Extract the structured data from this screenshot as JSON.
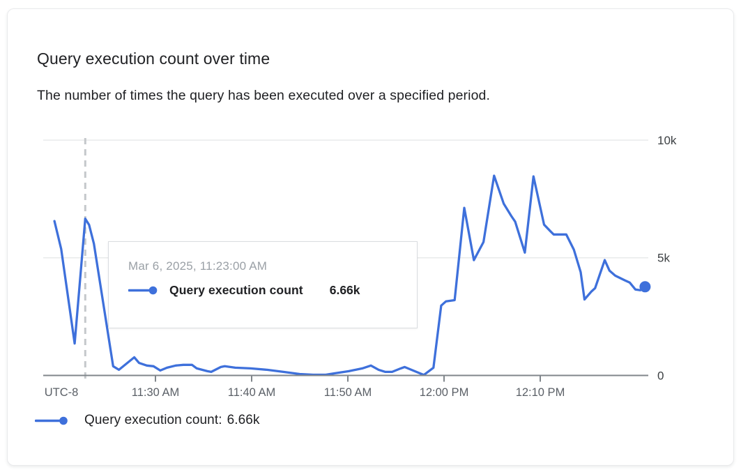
{
  "card": {
    "title": "Query execution count over time",
    "subtitle": "The number of times the query has been executed over a specified period."
  },
  "tooltip": {
    "timestamp": "Mar 6, 2025, 11:23:00 AM",
    "series_label": "Query execution count",
    "value": "6.66k"
  },
  "legend": {
    "label": "Query execution count:",
    "value": "6.66k"
  },
  "chart_data": {
    "type": "line",
    "title": "Query execution count over time",
    "series_name": "Query execution count",
    "x_axis": {
      "timezone_label": "UTC-8",
      "tick_labels": [
        "11:30 AM",
        "11:40 AM",
        "11:50 AM",
        "12:00 PM",
        "12:10 PM"
      ],
      "tick_minutes": [
        10,
        20,
        30,
        40,
        50
      ],
      "time_origin": "11:20 AM"
    },
    "y_axis": {
      "tick_labels": [
        "0",
        "5k",
        "10k"
      ],
      "min": 0,
      "max": 10000,
      "grid": true
    },
    "hover": {
      "time_label": "Mar 6, 2025, 11:23:00 AM",
      "t_min": 2.7,
      "value": 6660,
      "value_display": "6.66k"
    },
    "points": [
      [
        -0.5,
        6560
      ],
      [
        0.2,
        5370
      ],
      [
        1.6,
        1360
      ],
      [
        2.7,
        6660
      ],
      [
        3.1,
        6400
      ],
      [
        3.6,
        5600
      ],
      [
        5.6,
        390
      ],
      [
        6.2,
        240
      ],
      [
        7.8,
        770
      ],
      [
        8.3,
        530
      ],
      [
        9.1,
        420
      ],
      [
        9.8,
        390
      ],
      [
        10.5,
        210
      ],
      [
        11.2,
        330
      ],
      [
        12.1,
        420
      ],
      [
        12.9,
        450
      ],
      [
        13.8,
        450
      ],
      [
        14.3,
        300
      ],
      [
        15.4,
        180
      ],
      [
        15.8,
        150
      ],
      [
        16.8,
        360
      ],
      [
        17.2,
        390
      ],
      [
        18.3,
        330
      ],
      [
        19.9,
        300
      ],
      [
        21.6,
        240
      ],
      [
        23.3,
        150
      ],
      [
        25,
        60
      ],
      [
        26.4,
        30
      ],
      [
        27.7,
        30
      ],
      [
        28.6,
        90
      ],
      [
        30.1,
        180
      ],
      [
        31.5,
        300
      ],
      [
        32.4,
        420
      ],
      [
        33.2,
        240
      ],
      [
        33.9,
        150
      ],
      [
        34.6,
        150
      ],
      [
        35.5,
        300
      ],
      [
        35.9,
        360
      ],
      [
        36.6,
        240
      ],
      [
        37.5,
        90
      ],
      [
        37.9,
        20
      ],
      [
        38.9,
        330
      ],
      [
        39.7,
        2970
      ],
      [
        40.2,
        3150
      ],
      [
        41.1,
        3200
      ],
      [
        42.1,
        7120
      ],
      [
        43.1,
        4900
      ],
      [
        44.1,
        5670
      ],
      [
        45.2,
        8490
      ],
      [
        46.2,
        7300
      ],
      [
        47,
        6770
      ],
      [
        47.4,
        6530
      ],
      [
        48.4,
        5220
      ],
      [
        49.3,
        8460
      ],
      [
        50.4,
        6410
      ],
      [
        51.1,
        6110
      ],
      [
        51.4,
        5990
      ],
      [
        52.7,
        5990
      ],
      [
        53.5,
        5340
      ],
      [
        54.2,
        4390
      ],
      [
        54.6,
        3230
      ],
      [
        55.3,
        3560
      ],
      [
        55.7,
        3710
      ],
      [
        56.7,
        4900
      ],
      [
        57.2,
        4450
      ],
      [
        57.8,
        4240
      ],
      [
        58.8,
        4040
      ],
      [
        59.3,
        3950
      ],
      [
        59.9,
        3650
      ],
      [
        60.4,
        3620
      ],
      [
        60.9,
        3770
      ]
    ],
    "colors": {
      "line": "#3E70DB",
      "grid": "#E8EAEB",
      "axis": "#80868B",
      "crosshair": "#C5C8CB"
    },
    "legend_position": "bottom"
  }
}
